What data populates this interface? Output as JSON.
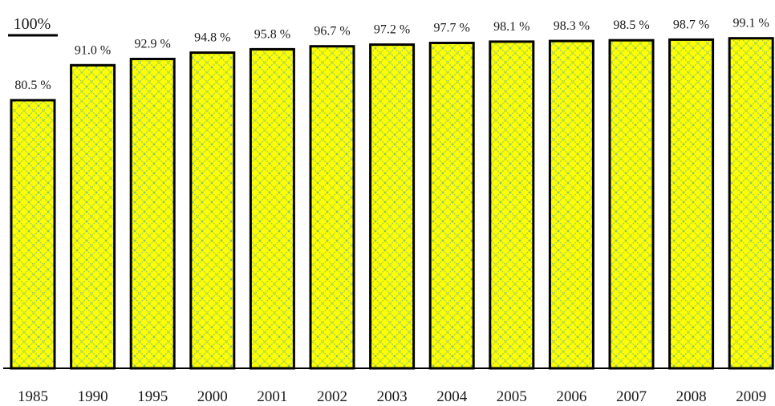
{
  "chart_data": {
    "type": "bar",
    "categories": [
      "1985",
      "1990",
      "1995",
      "2000",
      "2001",
      "2002",
      "2003",
      "2004",
      "2005",
      "2006",
      "2007",
      "2008",
      "2009"
    ],
    "values": [
      80.5,
      91.0,
      92.9,
      94.8,
      95.8,
      96.7,
      97.2,
      97.7,
      98.1,
      98.3,
      98.5,
      98.7,
      99.1
    ],
    "data_labels": [
      "80.5 %",
      "91.0 %",
      "92.9 %",
      "94.8 %",
      "95.8 %",
      "96.7 %",
      "97.2 %",
      "97.7 %",
      "98.1 %",
      "98.3 %",
      "98.5 %",
      "98.7 %",
      "99.1 %"
    ],
    "reference_line": {
      "label": "100%",
      "value": 100
    },
    "ylim": [
      0,
      100
    ],
    "grid": false,
    "legend": "none",
    "title": "",
    "xlabel": "",
    "ylabel": "",
    "colors": {
      "bar_fill": "#ffff00",
      "bar_pattern": "#7fbf7f",
      "bar_outline": "#000000",
      "axis": "#000000"
    }
  }
}
